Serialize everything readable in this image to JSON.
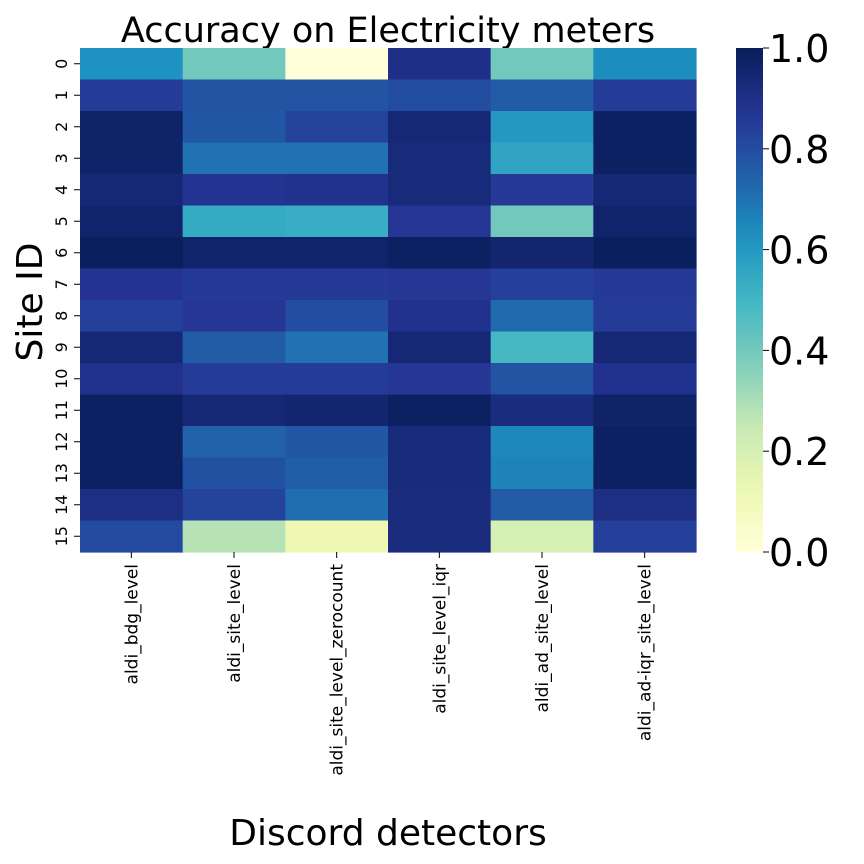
{
  "chart_data": {
    "type": "heatmap",
    "title": "Accuracy on Electricity meters",
    "xlabel": "Discord detectors",
    "ylabel": "Site ID",
    "x_categories": [
      "aldi_bdg_level",
      "aldi_site_level",
      "aldi_site_level_zerocount",
      "aldi_site_level_iqr",
      "aldi_ad_site_level",
      "aldi_ad-iqr_site_level"
    ],
    "y_categories": [
      "0",
      "1",
      "2",
      "3",
      "4",
      "5",
      "6",
      "7",
      "8",
      "9",
      "10",
      "11",
      "12",
      "13",
      "14",
      "15"
    ],
    "values": [
      [
        0.62,
        0.4,
        0.0,
        0.9,
        0.4,
        0.63
      ],
      [
        0.85,
        0.78,
        0.78,
        0.8,
        0.76,
        0.85
      ],
      [
        0.97,
        0.77,
        0.83,
        0.94,
        0.6,
        0.98
      ],
      [
        0.97,
        0.7,
        0.7,
        0.93,
        0.56,
        0.98
      ],
      [
        0.94,
        0.88,
        0.89,
        0.93,
        0.86,
        0.94
      ],
      [
        0.96,
        0.54,
        0.53,
        0.87,
        0.4,
        0.96
      ],
      [
        0.99,
        0.96,
        0.96,
        0.98,
        0.95,
        0.99
      ],
      [
        0.88,
        0.86,
        0.86,
        0.87,
        0.84,
        0.86
      ],
      [
        0.84,
        0.87,
        0.8,
        0.89,
        0.72,
        0.85
      ],
      [
        0.94,
        0.76,
        0.7,
        0.94,
        0.49,
        0.94
      ],
      [
        0.89,
        0.85,
        0.85,
        0.87,
        0.78,
        0.89
      ],
      [
        0.98,
        0.94,
        0.95,
        0.98,
        0.92,
        0.97
      ],
      [
        0.98,
        0.74,
        0.77,
        0.93,
        0.65,
        0.98
      ],
      [
        0.98,
        0.79,
        0.75,
        0.93,
        0.66,
        0.98
      ],
      [
        0.91,
        0.83,
        0.71,
        0.92,
        0.76,
        0.91
      ],
      [
        0.81,
        0.28,
        0.12,
        0.92,
        0.2,
        0.84
      ]
    ],
    "colormap": "YlGnBu",
    "color_range": [
      0,
      1
    ],
    "colorbar_ticks": [
      "0.0",
      "0.2",
      "0.4",
      "0.6",
      "0.8",
      "1.0"
    ],
    "legend_position": "right"
  }
}
